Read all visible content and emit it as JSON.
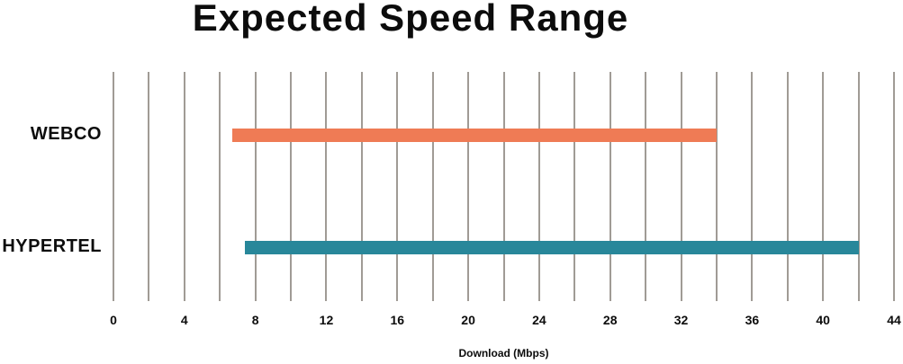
{
  "chart_data": {
    "type": "bar",
    "subtype": "horizontal-range",
    "title": "Expected Speed Range",
    "xlabel": "Download (Mbps)",
    "categories": [
      "WEBCO",
      "HYPERTEL"
    ],
    "series": [
      {
        "name": "WEBCO",
        "range_mbps": [
          6.7,
          34
        ],
        "color": "#ef7b55"
      },
      {
        "name": "HYPERTEL",
        "range_mbps": [
          7.4,
          42
        ],
        "color": "#28879a"
      }
    ],
    "xlim": [
      0,
      44
    ],
    "x_ticks": [
      0,
      4,
      8,
      12,
      16,
      20,
      24,
      28,
      32,
      36,
      40,
      44
    ],
    "gridline_step": 2,
    "grid": "vertical-only",
    "legend": "none",
    "colors": {
      "gridline": "#a09b95",
      "text": "#0c0c0c",
      "background": "#ffffff"
    }
  }
}
